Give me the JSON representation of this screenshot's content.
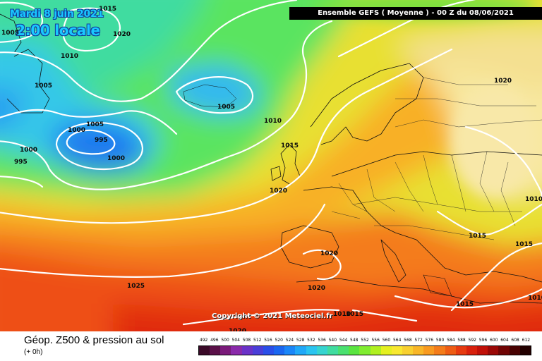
{
  "header": {
    "date": "Mardi 8 juin 2021",
    "time": "2:00 locale",
    "run": "Ensemble GEFS  ( Moyenne )  - 00 Z du 08/06/2021"
  },
  "copyright": "Copyright © 2021 Meteociel.fr",
  "footer": {
    "title": "Géop. Z500 & pression au sol",
    "subtitle": "(+ 0h)"
  },
  "legend": {
    "values": [
      "492",
      "496",
      "500",
      "504",
      "508",
      "512",
      "516",
      "520",
      "524",
      "528",
      "532",
      "536",
      "540",
      "544",
      "548",
      "552",
      "556",
      "560",
      "564",
      "568",
      "572",
      "576",
      "580",
      "584",
      "588",
      "592",
      "596",
      "600",
      "604",
      "608",
      "612"
    ],
    "colors": [
      "#3a0a28",
      "#5a1048",
      "#7a1a7a",
      "#8a2aaa",
      "#6a32c8",
      "#4a3ed8",
      "#2a4ee8",
      "#1a66f0",
      "#1a86f8",
      "#20a8f8",
      "#2ac4f0",
      "#36d4d0",
      "#40dca0",
      "#4ae070",
      "#5ae440",
      "#80ec30",
      "#b0f020",
      "#e4f020",
      "#f8e830",
      "#f8d030",
      "#f8b628",
      "#f89a20",
      "#f47c1a",
      "#ee5c14",
      "#e63a10",
      "#d8200c",
      "#c01008",
      "#9a0806",
      "#700404",
      "#480202",
      "#220000"
    ]
  },
  "isobars": [
    {
      "label": "1015",
      "pos": "top-left"
    },
    {
      "label": "1005",
      "pos": "far-left"
    },
    {
      "label": "1020",
      "pos": "upper-left"
    },
    {
      "label": "1010",
      "pos": "left"
    },
    {
      "label": "1005",
      "pos": "greenland-w"
    },
    {
      "label": "1005",
      "pos": "iceland"
    },
    {
      "label": "1010",
      "pos": "mid-atlantic"
    },
    {
      "label": "1005",
      "pos": "low-n"
    },
    {
      "label": "1000",
      "pos": "low-w"
    },
    {
      "label": "995",
      "pos": "low-center"
    },
    {
      "label": "1000",
      "pos": "low-s"
    },
    {
      "label": "1000",
      "pos": "west-edge"
    },
    {
      "label": "995",
      "pos": "west-edge-2"
    },
    {
      "label": "1015",
      "pos": "irish-sea"
    },
    {
      "label": "1020",
      "pos": "biscay"
    },
    {
      "label": "1020",
      "pos": "scandinavia"
    },
    {
      "label": "1010",
      "pos": "russia"
    },
    {
      "label": "1015",
      "pos": "balkans"
    },
    {
      "label": "1015",
      "pos": "black-sea"
    },
    {
      "label": "1020",
      "pos": "spain"
    },
    {
      "label": "1025",
      "pos": "atlantic-s"
    },
    {
      "label": "1020",
      "pos": "africa-n"
    },
    {
      "label": "1010",
      "pos": "libya"
    },
    {
      "label": "1015",
      "pos": "libya-2"
    },
    {
      "label": "1015",
      "pos": "greece"
    },
    {
      "label": "1010",
      "pos": "east-edge"
    },
    {
      "label": "1020",
      "pos": "bottom"
    }
  ]
}
